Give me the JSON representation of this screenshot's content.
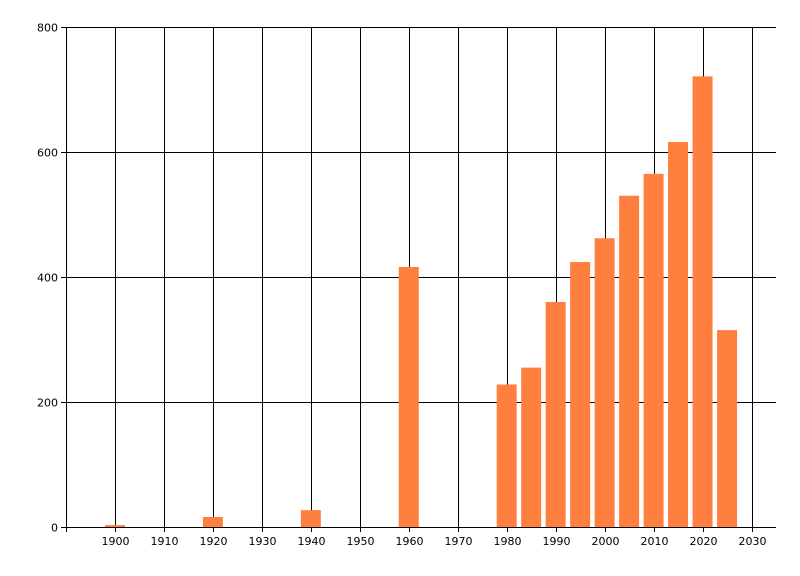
{
  "chart_data": {
    "type": "bar",
    "title": "",
    "xlabel": "",
    "ylabel": "",
    "x": [
      1900,
      1920,
      1940,
      1960,
      1980,
      1985,
      1990,
      1995,
      2000,
      2005,
      2010,
      2015,
      2020,
      2025
    ],
    "values": [
      3,
      16,
      27,
      416,
      228,
      255,
      360,
      424,
      462,
      530,
      565,
      616,
      721,
      315
    ],
    "xlim": [
      1890,
      2035
    ],
    "ylim": [
      0,
      800
    ],
    "x_ticks": [
      "1900",
      "1910",
      "1920",
      "1930",
      "1940",
      "1950",
      "1960",
      "1970",
      "1980",
      "1990",
      "2000",
      "2010",
      "2020",
      "2030"
    ],
    "y_ticks": [
      "0",
      "200",
      "400",
      "600",
      "800"
    ],
    "grid": true,
    "colors": {
      "bar": "#FF7F3F",
      "grid": "#000000",
      "axis": "#000000",
      "background": "#FFFFFF"
    }
  }
}
